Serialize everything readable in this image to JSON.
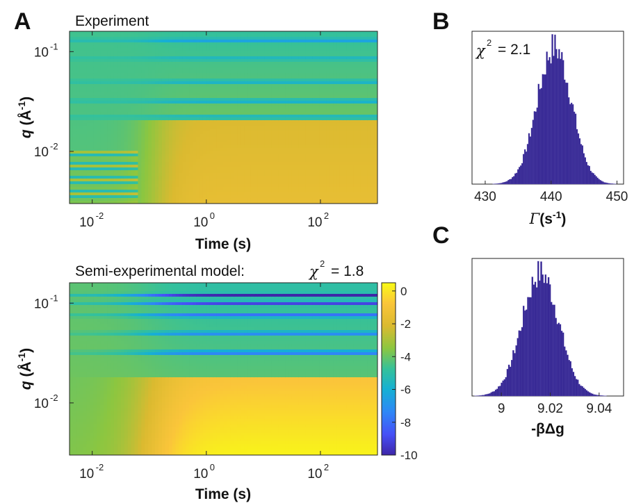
{
  "panels": {
    "A": "A",
    "B": "B",
    "C": "C"
  },
  "chart_data": [
    {
      "id": "A_top",
      "type": "heatmap",
      "title": "Experiment",
      "xlabel": "Time (s)",
      "ylabel": "q (Å^-1)",
      "xscale": "log",
      "yscale": "log",
      "xlim": [
        0.004,
        1000
      ],
      "ylim": [
        0.003,
        0.16
      ],
      "xticks": [
        {
          "base": "10",
          "exp": "-2"
        },
        {
          "base": "10",
          "exp": "0"
        },
        {
          "base": "10",
          "exp": "2"
        }
      ],
      "yticks": [
        {
          "base": "10",
          "exp": "-1"
        },
        {
          "base": "10",
          "exp": "-2"
        }
      ],
      "colormap": "parula",
      "bands": [
        {
          "q": 0.13,
          "value": -7
        },
        {
          "q": 0.085,
          "value": -6
        },
        {
          "q": 0.05,
          "value": -6.5
        },
        {
          "q": 0.032,
          "value": -7
        },
        {
          "q": 0.022,
          "value": -6.5
        }
      ]
    },
    {
      "id": "A_bottom",
      "type": "heatmap",
      "title": "Semi-experimental model:",
      "chi_label": "χ",
      "chi_value": "= 1.8",
      "xlabel": "Time (s)",
      "ylabel": "q (Å^-1)",
      "xscale": "log",
      "yscale": "log",
      "xlim": [
        0.004,
        1000
      ],
      "ylim": [
        0.003,
        0.16
      ],
      "xticks": [
        {
          "base": "10",
          "exp": "-2"
        },
        {
          "base": "10",
          "exp": "0"
        },
        {
          "base": "10",
          "exp": "2"
        }
      ],
      "yticks": [
        {
          "base": "10",
          "exp": "-1"
        },
        {
          "base": "10",
          "exp": "-2"
        }
      ],
      "colormap": "parula",
      "colorbar": {
        "min": -10,
        "max": 0.5,
        "ticks": [
          "0",
          "-2",
          "-4",
          "-6",
          "-8",
          "-10"
        ]
      },
      "bands": [
        {
          "q": 0.12,
          "value": -10
        },
        {
          "q": 0.1,
          "value": -9.5
        },
        {
          "q": 0.075,
          "value": -9
        },
        {
          "q": 0.05,
          "value": -8.5
        },
        {
          "q": 0.032,
          "value": -9.5
        }
      ]
    },
    {
      "id": "B",
      "type": "bar",
      "chi_label": "χ",
      "chi_value": "= 2.1",
      "xlabel_sym": "Γ",
      "xlabel_unit": "(s",
      "xlabel_exp": "-1",
      "xlim": [
        428,
        451
      ],
      "xticks": [
        "430",
        "440",
        "450"
      ],
      "distribution": {
        "kind": "gaussian",
        "mean": 440.5,
        "sd": 2.6,
        "bins": 90
      },
      "color": "#2e1f8f"
    },
    {
      "id": "C",
      "type": "bar",
      "xlabel": "-βΔg",
      "xlim": [
        8.988,
        9.05
      ],
      "xticks": [
        "9",
        "9.02",
        "9.04"
      ],
      "distribution": {
        "kind": "gaussian",
        "mean": 9.016,
        "sd": 0.0075,
        "bins": 90
      },
      "color": "#2e1f8f"
    }
  ]
}
